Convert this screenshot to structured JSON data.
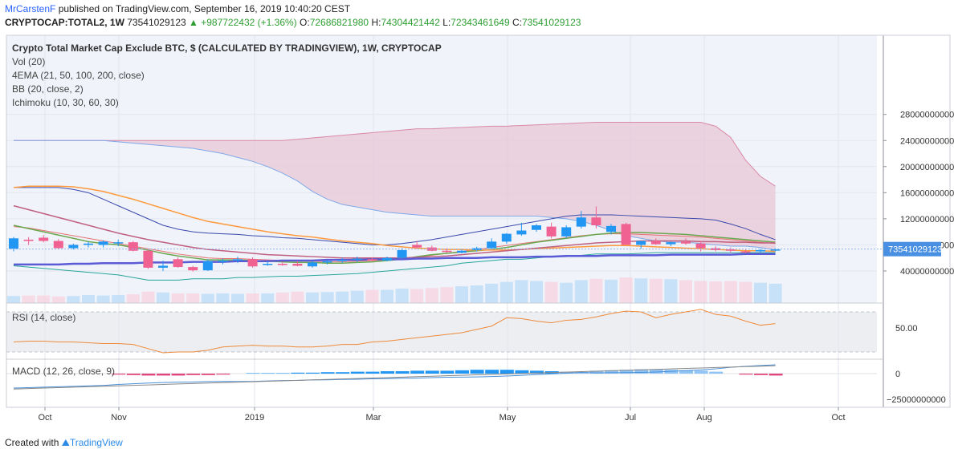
{
  "header": {
    "author": "MrCarstenF",
    "published_text": "published on TradingView.com, September 16, 2019 10:40:20 CEST",
    "symbol": "CRYPTOCAP:TOTAL2, 1W",
    "last": "73541029123",
    "change": "▲ +987722432 (+1.36%)",
    "o_label": "O:",
    "o_value": "72686821980",
    "h_label": "H:",
    "h_value": "74304421442",
    "l_label": "L:",
    "l_value": "72343461649",
    "c_label": "C:",
    "c_value": "73541029123"
  },
  "legends": {
    "title": "Crypto Total Market Cap Exclude BTC, $ (CALCULATED BY TRADINGVIEW), 1W, CRYPTOCAP",
    "vol": "Vol (20)",
    "ema": "4EMA (21, 50, 100, 200, close)",
    "bb": "BB (20, close, 2)",
    "ichimoku": "Ichimoku (10, 30, 60, 30)",
    "rsi": "RSI (14, close)",
    "macd": "MACD (12, 26, close, 9)"
  },
  "price_badge": "73541029123",
  "footer": {
    "created_with": "Created with",
    "brand": "TradingView"
  },
  "colors": {
    "up": "#2196f3",
    "down": "#f06292",
    "cloud": "#e8c7d5",
    "ema21": "#6aa84f",
    "ema50": "#ff9a3c",
    "ema100": "#c06080",
    "ema200": "#5b5bd6"
  },
  "chart_data": {
    "type": "candlestick",
    "x_ticks": [
      "Oct",
      "Nov",
      "2019",
      "Mar",
      "May",
      "Jul",
      "Aug",
      "Oct"
    ],
    "y_ticks": [
      "280000000000",
      "240000000000",
      "200000000000",
      "160000000000",
      "120000000000",
      "80000000000",
      "40000000000"
    ],
    "rsi_ticks": [
      "50.00"
    ],
    "macd_ticks": [
      "0",
      "−25000000000"
    ],
    "candles": [
      {
        "o": 74,
        "h": 92,
        "l": 70,
        "c": 90
      },
      {
        "o": 88,
        "h": 92,
        "l": 80,
        "c": 86
      },
      {
        "o": 91,
        "h": 95,
        "l": 84,
        "c": 86
      },
      {
        "o": 86,
        "h": 89,
        "l": 74,
        "c": 75
      },
      {
        "o": 75,
        "h": 82,
        "l": 73,
        "c": 80
      },
      {
        "o": 80,
        "h": 85,
        "l": 76,
        "c": 82
      },
      {
        "o": 80,
        "h": 87,
        "l": 76,
        "c": 85
      },
      {
        "o": 84,
        "h": 88,
        "l": 78,
        "c": 84
      },
      {
        "o": 84,
        "h": 86,
        "l": 70,
        "c": 71
      },
      {
        "o": 71,
        "h": 73,
        "l": 43,
        "c": 45
      },
      {
        "o": 45,
        "h": 56,
        "l": 40,
        "c": 48
      },
      {
        "o": 58,
        "h": 61,
        "l": 45,
        "c": 46
      },
      {
        "o": 46,
        "h": 48,
        "l": 39,
        "c": 41
      },
      {
        "o": 41,
        "h": 58,
        "l": 40,
        "c": 55
      },
      {
        "o": 54,
        "h": 59,
        "l": 50,
        "c": 56
      },
      {
        "o": 56,
        "h": 62,
        "l": 52,
        "c": 58
      },
      {
        "o": 58,
        "h": 61,
        "l": 45,
        "c": 47
      },
      {
        "o": 50,
        "h": 55,
        "l": 48,
        "c": 51
      },
      {
        "o": 51,
        "h": 54,
        "l": 48,
        "c": 50
      },
      {
        "o": 51,
        "h": 55,
        "l": 47,
        "c": 48
      },
      {
        "o": 47,
        "h": 55,
        "l": 45,
        "c": 53
      },
      {
        "o": 53,
        "h": 57,
        "l": 50,
        "c": 55
      },
      {
        "o": 55,
        "h": 60,
        "l": 52,
        "c": 57
      },
      {
        "o": 57,
        "h": 62,
        "l": 54,
        "c": 59
      },
      {
        "o": 58,
        "h": 61,
        "l": 55,
        "c": 56
      },
      {
        "o": 56,
        "h": 62,
        "l": 55,
        "c": 60
      },
      {
        "o": 60,
        "h": 75,
        "l": 58,
        "c": 72
      },
      {
        "o": 80,
        "h": 86,
        "l": 74,
        "c": 76
      },
      {
        "o": 76,
        "h": 79,
        "l": 70,
        "c": 71
      },
      {
        "o": 71,
        "h": 75,
        "l": 68,
        "c": 69
      },
      {
        "o": 68,
        "h": 73,
        "l": 67,
        "c": 71
      },
      {
        "o": 72,
        "h": 77,
        "l": 70,
        "c": 75
      },
      {
        "o": 75,
        "h": 90,
        "l": 73,
        "c": 85
      },
      {
        "o": 85,
        "h": 98,
        "l": 82,
        "c": 97
      },
      {
        "o": 96,
        "h": 114,
        "l": 94,
        "c": 102
      },
      {
        "o": 103,
        "h": 112,
        "l": 100,
        "c": 110
      },
      {
        "o": 108,
        "h": 114,
        "l": 90,
        "c": 93
      },
      {
        "o": 93,
        "h": 110,
        "l": 90,
        "c": 107
      },
      {
        "o": 108,
        "h": 132,
        "l": 105,
        "c": 122
      },
      {
        "o": 122,
        "h": 139,
        "l": 105,
        "c": 110
      },
      {
        "o": 100,
        "h": 112,
        "l": 96,
        "c": 109
      },
      {
        "o": 112,
        "h": 114,
        "l": 80,
        "c": 80
      },
      {
        "o": 80,
        "h": 86,
        "l": 74,
        "c": 86
      },
      {
        "o": 86,
        "h": 90,
        "l": 80,
        "c": 81
      },
      {
        "o": 81,
        "h": 85,
        "l": 78,
        "c": 84
      },
      {
        "o": 85,
        "h": 90,
        "l": 80,
        "c": 82
      },
      {
        "o": 82,
        "h": 86,
        "l": 70,
        "c": 75
      },
      {
        "o": 75,
        "h": 78,
        "l": 70,
        "c": 72
      },
      {
        "o": 73,
        "h": 76,
        "l": 68,
        "c": 71
      },
      {
        "o": 70,
        "h": 73,
        "l": 67,
        "c": 69
      },
      {
        "o": 70,
        "h": 74,
        "l": 68,
        "c": 72
      },
      {
        "o": 72,
        "h": 75,
        "l": 70,
        "c": 73
      }
    ],
    "volume": [
      16,
      17,
      17,
      15,
      16,
      18,
      17,
      18,
      20,
      26,
      24,
      22,
      22,
      21,
      22,
      21,
      22,
      22,
      24,
      26,
      24,
      25,
      26,
      28,
      30,
      30,
      33,
      32,
      34,
      36,
      38,
      40,
      44,
      48,
      52,
      50,
      48,
      46,
      52,
      55,
      53,
      58,
      56,
      55,
      54,
      52,
      50,
      49,
      50,
      48,
      46,
      44
    ],
    "ema21": [
      110,
      105,
      100,
      95,
      90,
      85,
      82,
      80,
      76,
      72,
      67,
      63,
      60,
      57,
      57,
      57,
      56,
      55,
      54,
      53,
      53,
      52,
      52,
      53,
      54,
      56,
      58,
      62,
      65,
      67,
      69,
      71,
      73,
      76,
      80,
      84,
      87,
      90,
      93,
      96,
      98,
      99,
      99,
      98,
      97,
      96,
      94,
      92,
      90,
      88,
      86,
      84
    ],
    "ema50": [
      168,
      170,
      170,
      170,
      169,
      166,
      162,
      156,
      150,
      143,
      136,
      129,
      122,
      116,
      112,
      108,
      104,
      100,
      97,
      94,
      92,
      89,
      86,
      84,
      82,
      79,
      77,
      75,
      74,
      73,
      73,
      72,
      72,
      72,
      73,
      74,
      75,
      76,
      77,
      78,
      79,
      79,
      78,
      77,
      76,
      75,
      74,
      73,
      72,
      71,
      71,
      70
    ],
    "ema100": [
      140,
      134,
      128,
      122,
      116,
      110,
      104,
      98,
      93,
      88,
      84,
      80,
      76,
      73,
      71,
      69,
      67,
      65,
      64,
      63,
      62,
      61,
      60,
      60,
      60,
      60,
      60,
      61,
      62,
      63,
      65,
      67,
      69,
      71,
      73,
      75,
      77,
      79,
      81,
      83,
      84,
      85,
      86,
      86,
      86,
      86,
      85,
      85,
      84,
      84,
      83,
      83
    ],
    "ema200": [
      50,
      50,
      50,
      50,
      51,
      51,
      52,
      52,
      52,
      53,
      53,
      53,
      54,
      54,
      54,
      55,
      55,
      55,
      56,
      56,
      56,
      57,
      57,
      57,
      58,
      58,
      58,
      59,
      59,
      60,
      60,
      60,
      61,
      61,
      61,
      62,
      62,
      63,
      63,
      63,
      64,
      64,
      64,
      64,
      65,
      65,
      65,
      65,
      65,
      66,
      66,
      66
    ],
    "bb_upper": [
      168,
      168,
      168,
      168,
      165,
      160,
      150,
      140,
      130,
      120,
      110,
      104,
      100,
      98,
      97,
      96,
      94,
      93,
      91,
      90,
      88,
      86,
      84,
      82,
      80,
      80,
      82,
      85,
      88,
      92,
      96,
      100,
      104,
      108,
      112,
      116,
      120,
      124,
      126,
      126,
      126,
      125,
      124,
      123,
      122,
      121,
      120,
      118,
      112,
      105,
      96,
      88
    ],
    "bb_basis": [
      108,
      106,
      102,
      98,
      94,
      90,
      86,
      82,
      78,
      74,
      70,
      66,
      63,
      60,
      59,
      59,
      58,
      57,
      56,
      55,
      55,
      54,
      54,
      55,
      56,
      57,
      59,
      61,
      64,
      67,
      70,
      73,
      76,
      79,
      82,
      85,
      88,
      91,
      94,
      96,
      97,
      97,
      96,
      95,
      94,
      93,
      92,
      90,
      88,
      86,
      84,
      82
    ],
    "bb_lower": [
      48,
      46,
      44,
      42,
      40,
      38,
      36,
      34,
      30,
      26,
      26,
      26,
      28,
      28,
      28,
      30,
      30,
      31,
      32,
      32,
      33,
      34,
      35,
      36,
      38,
      40,
      42,
      44,
      46,
      48,
      52,
      54,
      56,
      58,
      58,
      60,
      62,
      62,
      64,
      66,
      66,
      66,
      67,
      68,
      68,
      68,
      68,
      68,
      68,
      68,
      68,
      68
    ],
    "cloud_top": [
      240,
      240,
      240,
      240,
      240,
      240,
      240,
      240,
      240,
      240,
      240,
      240,
      240,
      240,
      240,
      240,
      240,
      240,
      240,
      242,
      244,
      246,
      248,
      250,
      252,
      254,
      256,
      258,
      258,
      259,
      260,
      261,
      262,
      262,
      263,
      264,
      265,
      266,
      267,
      268,
      268,
      268,
      268,
      268,
      268,
      268,
      268,
      262,
      245,
      210,
      185,
      170
    ],
    "cloud_bot": [
      240,
      240,
      240,
      240,
      240,
      240,
      240,
      238,
      236,
      234,
      232,
      230,
      228,
      224,
      220,
      214,
      208,
      200,
      190,
      178,
      162,
      150,
      142,
      138,
      134,
      130,
      128,
      126,
      124,
      124,
      124,
      124,
      124,
      124,
      124,
      124,
      122,
      120,
      116,
      110,
      102,
      94,
      90,
      86,
      84,
      84,
      82,
      80,
      78,
      78,
      76,
      72
    ],
    "rsi": [
      33,
      34,
      34,
      33,
      33,
      32,
      31,
      31,
      30,
      25,
      20,
      21,
      21,
      23,
      27,
      28,
      29,
      28,
      28,
      27,
      27,
      28,
      30,
      30,
      33,
      34,
      36,
      38,
      40,
      42,
      44,
      48,
      52,
      62,
      61,
      58,
      56,
      59,
      60,
      63,
      67,
      70,
      69,
      62,
      66,
      69,
      72,
      66,
      64,
      58,
      53,
      55
    ],
    "macd_hist": [
      0,
      0,
      0,
      0,
      0,
      0,
      0,
      -2,
      -3,
      -4,
      -4,
      -4,
      -3,
      -3,
      -2,
      0,
      1,
      1,
      1,
      2,
      2,
      3,
      3,
      4,
      4,
      5,
      5,
      6,
      6,
      6,
      7,
      8,
      8,
      8,
      7,
      6,
      5,
      4,
      3,
      6,
      7,
      8,
      9,
      9,
      8,
      7,
      6,
      4,
      0,
      -2,
      -3,
      -4
    ]
  }
}
